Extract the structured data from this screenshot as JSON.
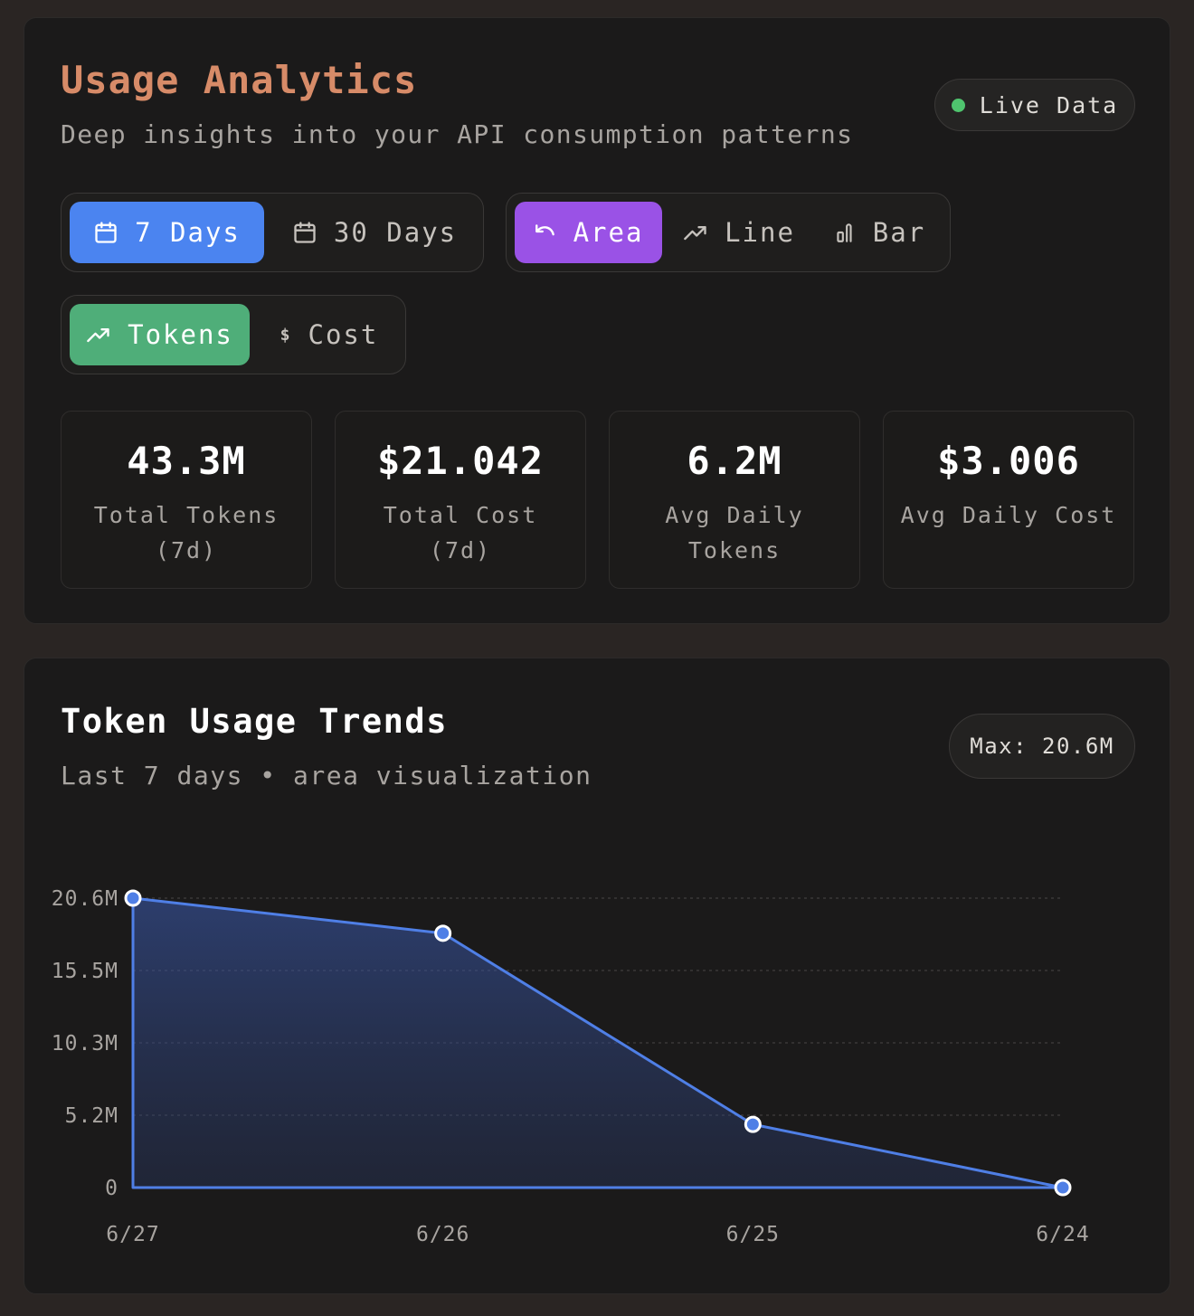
{
  "header": {
    "title": "Usage Analytics",
    "subtitle": "Deep insights into your API consumption patterns",
    "live_label": "Live Data"
  },
  "range_toggle": {
    "options": [
      {
        "label": "7 Days",
        "icon": "calendar-icon",
        "active": true
      },
      {
        "label": "30 Days",
        "icon": "calendar-icon",
        "active": false
      }
    ]
  },
  "chart_type_toggle": {
    "options": [
      {
        "label": "Area",
        "icon": "undo-arrow-icon",
        "active": true
      },
      {
        "label": "Line",
        "icon": "trending-up-icon",
        "active": false
      },
      {
        "label": "Bar",
        "icon": "bar-chart-icon",
        "active": false
      }
    ]
  },
  "metric_toggle": {
    "options": [
      {
        "label": "Tokens",
        "icon": "trending-up-icon",
        "active": true
      },
      {
        "label": "Cost",
        "icon": "dollar-icon",
        "active": false
      }
    ]
  },
  "stats": [
    {
      "value": "43.3M",
      "label": "Total Tokens (7d)"
    },
    {
      "value": "$21.042",
      "label": "Total Cost (7d)"
    },
    {
      "value": "6.2M",
      "label": "Avg Daily Tokens"
    },
    {
      "value": "$3.006",
      "label": "Avg Daily Cost"
    }
  ],
  "chart_panel": {
    "title": "Token Usage Trends",
    "subtitle": "Last 7 days • area visualization",
    "max_label": "Max: 20.6M"
  },
  "colors": {
    "title_accent": "#d78b68",
    "live_dot": "#4fc46e",
    "active_range": "#4b84f0",
    "active_chart_type": "#9a52e6",
    "active_metric": "#4fae79",
    "series_line": "#4f7fe6"
  },
  "chart_data": {
    "type": "area",
    "categories": [
      "6/27",
      "6/26",
      "6/25",
      "6/24"
    ],
    "series": [
      {
        "values": [
          20.6,
          18.1,
          4.5,
          0
        ]
      }
    ],
    "unit": "M",
    "yticks": [
      "20.6M",
      "15.5M",
      "10.3M",
      "5.2M",
      "0"
    ],
    "ylim": [
      0,
      20.6
    ],
    "grid": true
  }
}
